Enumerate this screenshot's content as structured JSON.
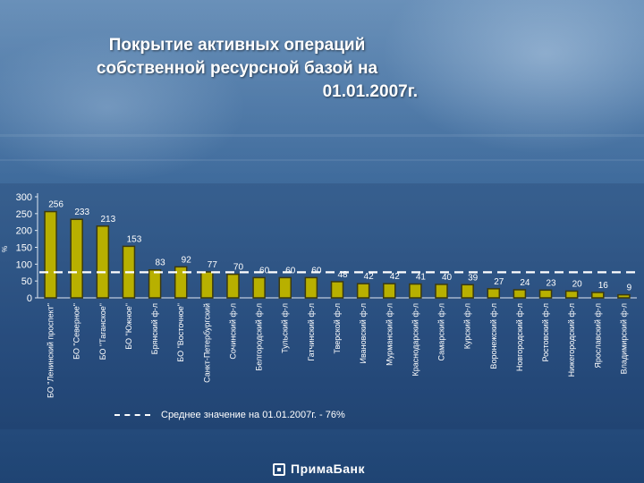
{
  "title_lines": [
    "Покрытие активных операций",
    "собственной ресурсной базой на",
    "01.01.2007г."
  ],
  "logo": {
    "name": "ПримаБанк"
  },
  "legend": {
    "label": "Среднее значение на 01.01.2007г.  -   76%"
  },
  "chart_data": {
    "type": "bar",
    "title": "Покрытие активных операций собственной ресурсной базой на 01.01.2007г.",
    "xlabel": "",
    "ylabel": "%",
    "ylim": [
      0,
      300
    ],
    "yticks": [
      0,
      50,
      100,
      150,
      200,
      250,
      300
    ],
    "grid": false,
    "legend_position": "bottom-left",
    "bar_color": "#b8b000",
    "average": {
      "value": 76,
      "label": "Среднее значение на 01.01.2007г.  -   76%",
      "color": "#ffffff"
    },
    "categories": [
      "БО \"Ленинский проспект\"",
      "БО \"Северное\"",
      "БО \"Таганское\"",
      "БО \"Южное\"",
      "Брянский ф-л",
      "БО \"Восточное\"",
      "Санкт-Петербургский",
      "Сочинский ф-л",
      "Белгородский ф-л",
      "Тульский ф-л",
      "Гатчинский ф-л",
      "Тверской ф-л",
      "Ивановский ф-л",
      "Мурманский ф-л",
      "Краснодарский ф-л",
      "Самарский ф-л",
      "Курский ф-л",
      "Воронежский ф-л",
      "Новгородский ф-л",
      "Ростовский ф-л",
      "Нижегородский ф-л",
      "Ярославский ф-л",
      "Владимирский ф-л"
    ],
    "values": [
      256,
      233,
      213,
      153,
      83,
      92,
      77,
      70,
      60,
      60,
      60,
      48,
      42,
      42,
      41,
      40,
      39,
      27,
      24,
      23,
      20,
      16,
      9
    ]
  }
}
